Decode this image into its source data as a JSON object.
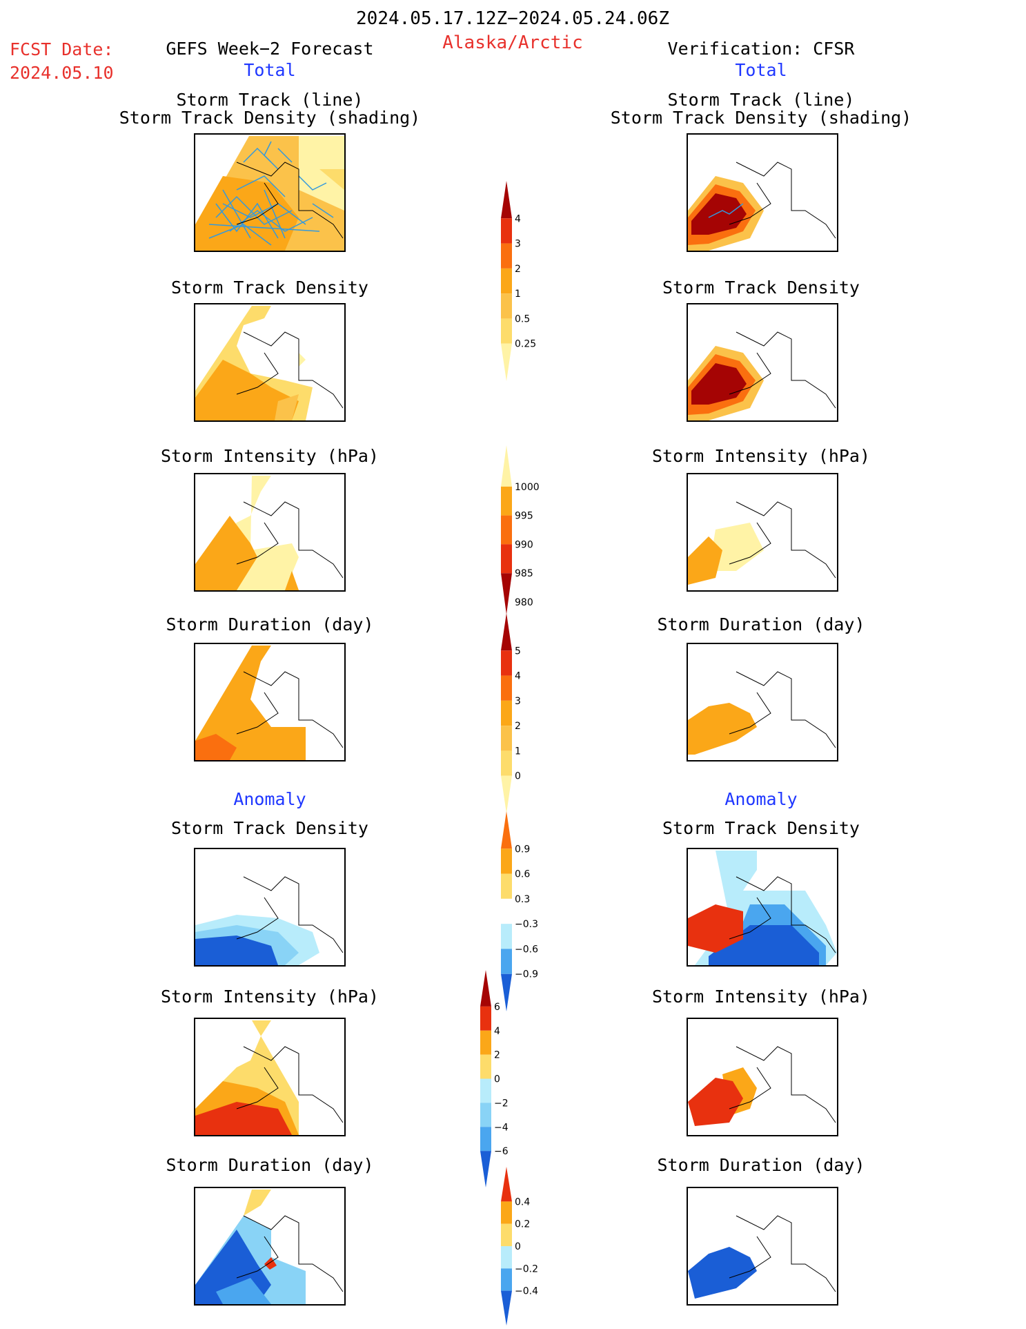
{
  "header": {
    "period": "2024.05.17.12Z−2024.05.24.06Z",
    "fcst_label": "FCST Date:",
    "fcst_date": "2024.05.10",
    "region": "Alaska/Arctic",
    "left_title": "GEFS Week−2 Forecast",
    "right_title": "Verification: CFSR",
    "total_label": "Total",
    "anomaly_label": "Anomaly"
  },
  "panel_titles": {
    "track_line": "Storm Track (line)",
    "track_density_shading": "Storm Track Density (shading)",
    "track_density": "Storm Track Density",
    "intensity": "Storm Intensity (hPa)",
    "duration": "Storm Duration (day)"
  },
  "colors": {
    "lightyellow": "#fff3a6",
    "yellow": "#fddc6b",
    "lightorange": "#fbc24a",
    "orange": "#fba718",
    "darkorange": "#fa6f0f",
    "red": "#e8310f",
    "darkred": "#a50404",
    "cyan": "#b8ecfb",
    "lightblue": "#89d3f6",
    "blue": "#4aa6ef",
    "darkblue": "#1a5ed6",
    "track": "#3399dd"
  },
  "chart_data": [
    {
      "type": "colorbar",
      "name": "density_total",
      "tick_labels": [
        "4",
        "3",
        "2",
        "1",
        "0.5",
        "0.25"
      ],
      "colors": [
        "#a50404",
        "#e8310f",
        "#fa6f0f",
        "#fba718",
        "#fbc24a",
        "#fddc6b",
        "#fff3a6"
      ]
    },
    {
      "type": "colorbar",
      "name": "intensity_total",
      "tick_labels": [
        "1000",
        "995",
        "990",
        "985",
        "980"
      ],
      "colors": [
        "#fff3a6",
        "#fba718",
        "#fa6f0f",
        "#e8310f",
        "#a50404"
      ]
    },
    {
      "type": "colorbar",
      "name": "duration_total",
      "tick_labels": [
        "5",
        "4",
        "3",
        "2",
        "1",
        "0"
      ],
      "colors": [
        "#a50404",
        "#e8310f",
        "#fa6f0f",
        "#fba718",
        "#fbc24a",
        "#fddc6b",
        "#fff3a6"
      ]
    },
    {
      "type": "colorbar",
      "name": "density_anomaly",
      "tick_labels": [
        "0.9",
        "0.6",
        "0.3",
        "−0.3",
        "−0.6",
        "−0.9"
      ],
      "colors": [
        "#fa6f0f",
        "#fba718",
        "#fddc6b",
        "#ffffff",
        "#b8ecfb",
        "#4aa6ef",
        "#1a5ed6"
      ]
    },
    {
      "type": "colorbar",
      "name": "intensity_anomaly",
      "tick_labels": [
        "6",
        "4",
        "2",
        "0",
        "−2",
        "−4",
        "−6"
      ],
      "colors": [
        "#a50404",
        "#e8310f",
        "#fba718",
        "#fddc6b",
        "#b8ecfb",
        "#89d3f6",
        "#4aa6ef",
        "#1a5ed6"
      ]
    },
    {
      "type": "colorbar",
      "name": "duration_anomaly",
      "tick_labels": [
        "0.4",
        "0.2",
        "0",
        "−0.2",
        "−0.4"
      ],
      "colors": [
        "#e8310f",
        "#fba718",
        "#fddc6b",
        "#b8ecfb",
        "#4aa6ef",
        "#1a5ed6"
      ]
    }
  ]
}
